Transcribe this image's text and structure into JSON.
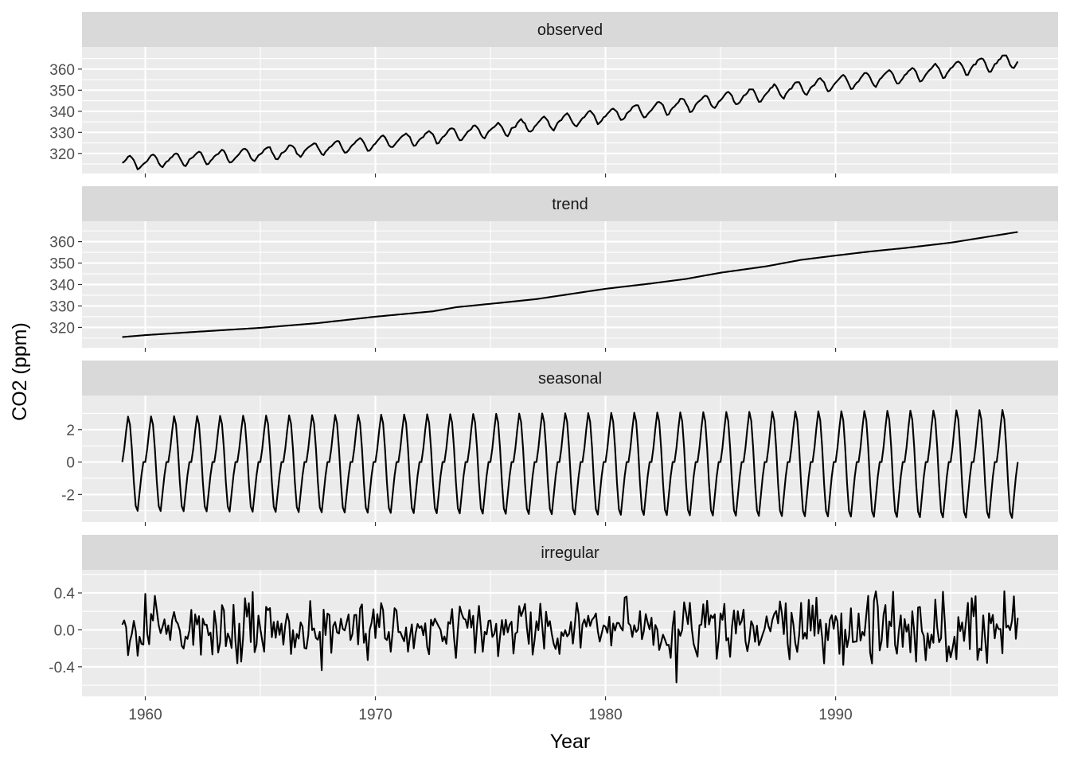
{
  "chart_data": {
    "type": "line",
    "title": "",
    "xlabel": "Year",
    "ylabel": "CO2 (ppm)",
    "x_range": [
      1959.0,
      1997.917
    ],
    "x_ticks": [
      1960,
      1970,
      1980,
      1990
    ],
    "x_tick_labels": [
      "1960",
      "1970",
      "1980",
      "1990"
    ],
    "grid": true,
    "legend": "none",
    "facets": [
      {
        "name": "observed",
        "y_ticks": [
          320,
          330,
          340,
          350,
          360
        ],
        "y_tick_labels": [
          "320",
          "330",
          "340",
          "350",
          "360"
        ],
        "ylim": [
          310.5,
          370.5
        ],
        "generator": {
          "kind": "trend_plus_seasonal",
          "trend_anchors": [
            [
              1959.0,
              315.5
            ],
            [
              1965.0,
              319.8
            ],
            [
              1970.0,
              325.0
            ],
            [
              1975.0,
              331.0
            ],
            [
              1980.0,
              338.0
            ],
            [
              1985.0,
              345.5
            ],
            [
              1990.0,
              353.5
            ],
            [
              1993.0,
              357.0
            ],
            [
              1997.917,
              364.5
            ]
          ],
          "seasonal_profile": [
            0.0,
            0.7,
            1.6,
            2.5,
            2.8,
            2.1,
            0.7,
            -1.4,
            -3.0,
            -3.2,
            -2.0,
            -0.8
          ],
          "seasonal_amp_start": 1.0,
          "seasonal_amp_end": 1.15,
          "noise_sd": 0.25
        }
      },
      {
        "name": "trend",
        "y_ticks": [
          320,
          330,
          340,
          350,
          360
        ],
        "y_tick_labels": [
          "320",
          "330",
          "340",
          "350",
          "360"
        ],
        "ylim": [
          310.5,
          369.5
        ],
        "generator": {
          "kind": "trend_only",
          "trend_anchors": [
            [
              1959.0,
              315.5
            ],
            [
              1960.0,
              316.4
            ],
            [
              1962.0,
              317.8
            ],
            [
              1965.0,
              319.8
            ],
            [
              1967.5,
              322.0
            ],
            [
              1970.0,
              325.0
            ],
            [
              1972.5,
              327.5
            ],
            [
              1973.5,
              329.4
            ],
            [
              1975.0,
              331.0
            ],
            [
              1977.0,
              333.2
            ],
            [
              1980.0,
              338.0
            ],
            [
              1982.0,
              340.5
            ],
            [
              1983.5,
              342.6
            ],
            [
              1985.0,
              345.5
            ],
            [
              1987.0,
              348.5
            ],
            [
              1988.5,
              351.5
            ],
            [
              1990.0,
              353.5
            ],
            [
              1991.5,
              355.4
            ],
            [
              1993.0,
              357.0
            ],
            [
              1995.0,
              359.5
            ],
            [
              1997.917,
              364.5
            ]
          ]
        }
      },
      {
        "name": "seasonal",
        "y_ticks": [
          -2,
          0,
          2
        ],
        "y_tick_labels": [
          "-2",
          "0",
          "2"
        ],
        "ylim": [
          -3.7,
          4.1
        ],
        "generator": {
          "kind": "seasonal_only",
          "seasonal_profile": [
            0.0,
            0.8,
            1.9,
            2.8,
            2.3,
            0.8,
            -1.2,
            -2.7,
            -3.0,
            -1.9,
            -0.8,
            0.0
          ],
          "seasonal_amp_start": 1.0,
          "seasonal_amp_end": 1.15
        }
      },
      {
        "name": "irregular",
        "y_ticks": [
          -0.4,
          0.0,
          0.4
        ],
        "y_tick_labels": [
          "-0.4",
          "0.0",
          "0.4"
        ],
        "ylim": [
          -0.72,
          0.65
        ],
        "generator": {
          "kind": "noise",
          "sd": 0.18,
          "min": -0.68,
          "max": 0.6,
          "seed": 17
        }
      }
    ]
  }
}
